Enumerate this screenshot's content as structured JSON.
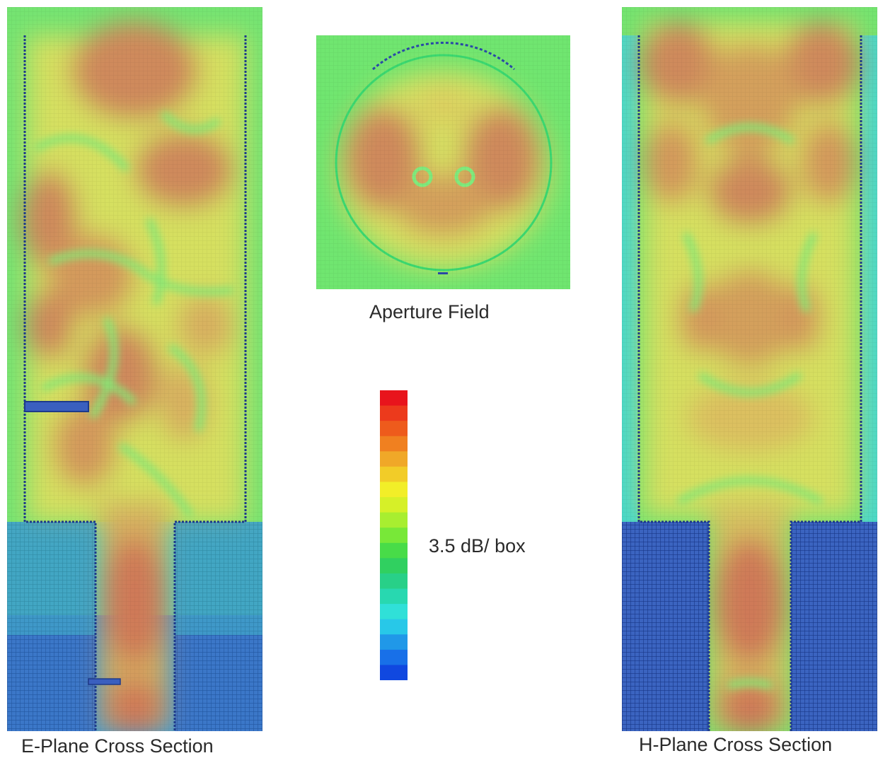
{
  "captions": {
    "e_plane": "E-Plane Cross Section",
    "aperture": "Aperture Field",
    "h_plane": "H-Plane Cross Section"
  },
  "colorbar": {
    "label": "3.5 dB/ box",
    "colors": [
      "#e8141c",
      "#ec3a1c",
      "#ee5b1c",
      "#f08020",
      "#f0a828",
      "#f2cc28",
      "#f2ee28",
      "#d6f028",
      "#a8ee30",
      "#78e838",
      "#48dc48",
      "#30d060",
      "#28d088",
      "#28d8b0",
      "#30e0d8",
      "#28c8e8",
      "#2098e8",
      "#1870e8",
      "#1048e0"
    ]
  },
  "colors": {
    "field_high": "#cf8a5c",
    "field_mid": "#d6e262",
    "field_low": "#7ee070",
    "green_bg": "#6ee872",
    "metal": "#3d5fb0",
    "outline": "#1e3a8a",
    "cyan": "#48d8c8"
  }
}
